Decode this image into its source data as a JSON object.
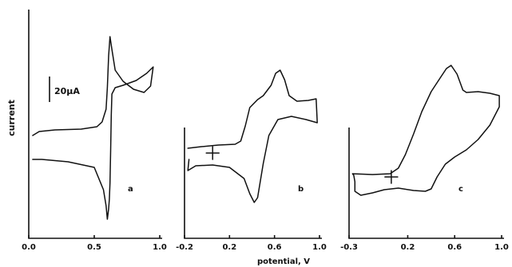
{
  "chart_data": {
    "type": "line",
    "ylabel": "current",
    "xlabel": "potential, V",
    "scale_bar_label": "20μA",
    "panels": [
      {
        "label": "a",
        "xlim": [
          0.0,
          1.0
        ],
        "x_ticks": [
          "0.0",
          "0.5",
          "1.0"
        ],
        "curve": [
          [
            0.03,
            170
          ],
          [
            0.08,
            165
          ],
          [
            0.2,
            163
          ],
          [
            0.4,
            162
          ],
          [
            0.52,
            159
          ],
          [
            0.56,
            153
          ],
          [
            0.59,
            137
          ],
          [
            0.6,
            110
          ],
          [
            0.61,
            70
          ],
          [
            0.62,
            46
          ],
          [
            0.635,
            62
          ],
          [
            0.66,
            88
          ],
          [
            0.72,
            102
          ],
          [
            0.8,
            112
          ],
          [
            0.88,
            116
          ],
          [
            0.93,
            108
          ],
          [
            0.95,
            84
          ],
          [
            0.9,
            92
          ],
          [
            0.82,
            101
          ],
          [
            0.72,
            107
          ],
          [
            0.66,
            110
          ],
          [
            0.635,
            118
          ],
          [
            0.63,
            145
          ],
          [
            0.625,
            190
          ],
          [
            0.62,
            230
          ],
          [
            0.615,
            250
          ],
          [
            0.61,
            262
          ],
          [
            0.6,
            275
          ],
          [
            0.59,
            258
          ],
          [
            0.57,
            238
          ],
          [
            0.5,
            210
          ],
          [
            0.3,
            203
          ],
          [
            0.1,
            200
          ],
          [
            0.03,
            200
          ]
        ]
      },
      {
        "label": "b",
        "xlim": [
          -0.2,
          1.0
        ],
        "x_ticks": [
          "-0.2",
          "0.2",
          "0.6",
          "1.0"
        ],
        "curve": [
          [
            -0.17,
            186
          ],
          [
            -0.05,
            184
          ],
          [
            0.1,
            182
          ],
          [
            0.25,
            181
          ],
          [
            0.3,
            177
          ],
          [
            0.34,
            158
          ],
          [
            0.38,
            135
          ],
          [
            0.45,
            125
          ],
          [
            0.5,
            120
          ],
          [
            0.57,
            107
          ],
          [
            0.61,
            92
          ],
          [
            0.65,
            88
          ],
          [
            0.69,
            100
          ],
          [
            0.73,
            120
          ],
          [
            0.8,
            127
          ],
          [
            0.9,
            126
          ],
          [
            0.97,
            124
          ],
          [
            0.98,
            154
          ],
          [
            0.88,
            150
          ],
          [
            0.75,
            146
          ],
          [
            0.63,
            150
          ],
          [
            0.55,
            170
          ],
          [
            0.5,
            205
          ],
          [
            0.45,
            248
          ],
          [
            0.42,
            254
          ],
          [
            0.38,
            243
          ],
          [
            0.33,
            224
          ],
          [
            0.2,
            210
          ],
          [
            0.05,
            207
          ],
          [
            -0.1,
            208
          ],
          [
            -0.17,
            214
          ],
          [
            -0.16,
            200
          ]
        ]
      },
      {
        "label": "c",
        "xlim": [
          -0.3,
          1.0
        ],
        "x_ticks": [
          "-0.3",
          "0.2",
          "0.6",
          "1.0"
        ],
        "curve": [
          [
            -0.27,
            218
          ],
          [
            -0.1,
            219
          ],
          [
            0.05,
            218
          ],
          [
            0.12,
            211
          ],
          [
            0.18,
            194
          ],
          [
            0.25,
            168
          ],
          [
            0.32,
            140
          ],
          [
            0.4,
            115
          ],
          [
            0.48,
            97
          ],
          [
            0.53,
            86
          ],
          [
            0.57,
            82
          ],
          [
            0.62,
            93
          ],
          [
            0.67,
            113
          ],
          [
            0.7,
            116
          ],
          [
            0.8,
            115
          ],
          [
            0.9,
            117
          ],
          [
            0.98,
            120
          ],
          [
            0.98,
            134
          ],
          [
            0.9,
            157
          ],
          [
            0.8,
            175
          ],
          [
            0.7,
            188
          ],
          [
            0.6,
            197
          ],
          [
            0.52,
            206
          ],
          [
            0.45,
            222
          ],
          [
            0.4,
            237
          ],
          [
            0.35,
            240
          ],
          [
            0.25,
            239
          ],
          [
            0.12,
            236
          ],
          [
            0.0,
            238
          ],
          [
            -0.1,
            242
          ],
          [
            -0.2,
            245
          ],
          [
            -0.25,
            240
          ],
          [
            -0.25,
            228
          ],
          [
            -0.26,
            220
          ],
          [
            -0.27,
            218
          ]
        ]
      }
    ]
  }
}
